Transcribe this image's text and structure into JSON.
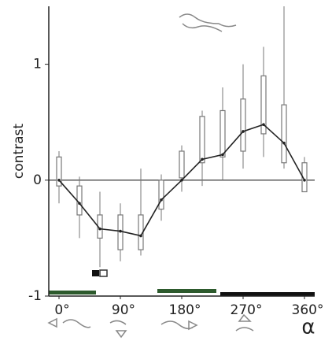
{
  "chart_data": {
    "type": "box",
    "y_label": "contrast",
    "x_label": "α",
    "x": [
      0,
      30,
      60,
      90,
      120,
      150,
      180,
      210,
      240,
      270,
      300,
      330,
      360
    ],
    "mean": [
      0,
      -0.2,
      -0.42,
      -0.44,
      -0.48,
      -0.17,
      0,
      0.18,
      0.22,
      0.42,
      0.48,
      0.32,
      0
    ],
    "q1": [
      -0.05,
      -0.3,
      -0.5,
      -0.6,
      -0.6,
      -0.25,
      0.02,
      0.15,
      0.2,
      0.25,
      0.4,
      0.15,
      -0.1
    ],
    "q3": [
      0.2,
      -0.05,
      -0.3,
      -0.3,
      -0.3,
      0,
      0.25,
      0.55,
      0.6,
      0.7,
      0.9,
      0.65,
      0.15
    ],
    "whisker_low": [
      -0.2,
      -0.5,
      -0.75,
      -0.7,
      -0.65,
      -0.35,
      -0.1,
      -0.05,
      0,
      0.1,
      0.2,
      0.1,
      -0.1
    ],
    "whisker_high": [
      0.25,
      0.03,
      -0.1,
      -0.2,
      0.1,
      0.05,
      0.3,
      0.6,
      0.8,
      1.0,
      1.15,
      1.5,
      0.2
    ],
    "line_color": "#222222",
    "box_color": "#777777",
    "reference_line": 0,
    "xlim": [
      -15,
      375
    ],
    "ylim": [
      -1,
      1.5
    ],
    "xticks": [
      {
        "value": 0,
        "label": "0°"
      },
      {
        "value": 90,
        "label": "90°"
      },
      {
        "value": 180,
        "label": "180°"
      },
      {
        "value": 270,
        "label": "270°"
      },
      {
        "value": 360,
        "label": "360°"
      }
    ],
    "yticks": [
      -1,
      0,
      1
    ]
  }
}
